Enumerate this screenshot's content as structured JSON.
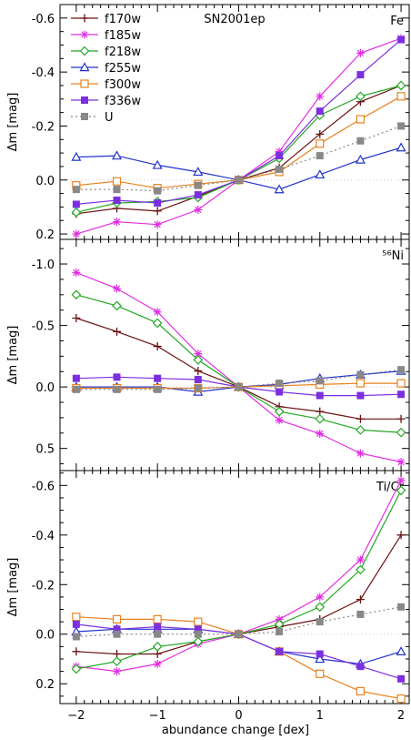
{
  "figure": {
    "xlabel": "abundance change [dex]",
    "ylabel": "Δm [mag]",
    "xticks": [
      -2,
      -1,
      0,
      1,
      2
    ],
    "legend_title": "SN2001ep"
  },
  "styles": [
    {
      "name": "f170w",
      "color": "#6b1010",
      "marker": "plus",
      "dash": ""
    },
    {
      "name": "f185w",
      "color": "#e22ee2",
      "marker": "asterisk",
      "dash": ""
    },
    {
      "name": "f218w",
      "color": "#22a822",
      "marker": "diamond",
      "dash": ""
    },
    {
      "name": "f255w",
      "color": "#2233cc",
      "marker": "triangle",
      "dash": ""
    },
    {
      "name": "f300w",
      "color": "#e8821e",
      "marker": "square-open",
      "dash": ""
    },
    {
      "name": "f336w",
      "color": "#7c2fe0",
      "marker": "square-filled",
      "dash": ""
    },
    {
      "name": "U",
      "color": "#888888",
      "marker": "square-filled",
      "dash": "2,3"
    }
  ],
  "chart_data": [
    {
      "type": "line",
      "panel_label": "Fe",
      "ylim": [
        0.22,
        -0.65
      ],
      "yticks": [
        0.2,
        0.0,
        -0.2,
        -0.4,
        -0.6
      ],
      "ytick_labels": [
        "0.2",
        "0.0",
        "-0.2",
        "-0.4",
        "-0.6"
      ],
      "x": [
        -2,
        -1.5,
        -1,
        -0.5,
        0,
        0.5,
        1,
        1.5,
        2
      ],
      "series": [
        {
          "name": "f170w",
          "values": [
            0.125,
            0.105,
            0.115,
            0.06,
            0.0,
            -0.045,
            -0.17,
            -0.29,
            -0.35
          ]
        },
        {
          "name": "f185w",
          "values": [
            0.2,
            0.155,
            0.165,
            0.11,
            0.0,
            -0.105,
            -0.31,
            -0.47,
            -0.525
          ]
        },
        {
          "name": "f218w",
          "values": [
            0.12,
            0.085,
            0.08,
            0.065,
            0.0,
            -0.08,
            -0.24,
            -0.31,
            -0.35
          ]
        },
        {
          "name": "f255w",
          "values": [
            -0.085,
            -0.09,
            -0.055,
            -0.03,
            0.0,
            0.035,
            -0.02,
            -0.075,
            -0.12
          ]
        },
        {
          "name": "f300w",
          "values": [
            0.02,
            0.005,
            0.03,
            0.015,
            0.0,
            -0.03,
            -0.135,
            -0.225,
            -0.31
          ]
        },
        {
          "name": "f336w",
          "values": [
            0.09,
            0.075,
            0.085,
            0.055,
            0.0,
            -0.09,
            -0.255,
            -0.39,
            -0.52
          ]
        },
        {
          "name": "U",
          "values": [
            0.035,
            0.035,
            0.04,
            0.02,
            0.0,
            -0.04,
            -0.09,
            -0.145,
            -0.2
          ]
        }
      ]
    },
    {
      "type": "line",
      "panel_label": "⁵⁶Ni",
      "ylim": [
        0.68,
        -1.2
      ],
      "yticks": [
        0.5,
        0.0,
        -0.5,
        -1.0
      ],
      "ytick_labels": [
        "0.5",
        "0.0",
        "-0.5",
        "-1.0"
      ],
      "x": [
        -2,
        -1.5,
        -1,
        -0.5,
        0,
        0.5,
        1,
        1.5,
        2
      ],
      "series": [
        {
          "name": "f170w",
          "values": [
            -0.56,
            -0.45,
            -0.33,
            -0.13,
            0.0,
            0.16,
            0.2,
            0.26,
            0.26
          ]
        },
        {
          "name": "f185w",
          "values": [
            -0.93,
            -0.8,
            -0.61,
            -0.27,
            0.0,
            0.27,
            0.38,
            0.54,
            0.61
          ]
        },
        {
          "name": "f218w",
          "values": [
            -0.75,
            -0.66,
            -0.52,
            -0.22,
            0.0,
            0.2,
            0.26,
            0.35,
            0.37
          ]
        },
        {
          "name": "f255w",
          "values": [
            0.0,
            0.0,
            0.0,
            0.04,
            0.0,
            -0.02,
            -0.07,
            -0.1,
            -0.13
          ]
        },
        {
          "name": "f300w",
          "values": [
            0.01,
            0.01,
            0.01,
            0.01,
            0.0,
            -0.01,
            -0.02,
            -0.03,
            -0.03
          ]
        },
        {
          "name": "f336w",
          "values": [
            -0.07,
            -0.08,
            -0.07,
            -0.06,
            0.0,
            0.04,
            0.07,
            0.07,
            0.06
          ]
        },
        {
          "name": "U",
          "values": [
            0.02,
            0.02,
            0.02,
            0.01,
            0.0,
            -0.03,
            -0.05,
            -0.1,
            -0.14
          ]
        }
      ]
    },
    {
      "type": "line",
      "panel_label": "Ti/Cr",
      "ylim": [
        0.28,
        -0.66
      ],
      "yticks": [
        0.2,
        0.0,
        -0.2,
        -0.4,
        -0.6
      ],
      "ytick_labels": [
        "0.2",
        "0.0",
        "-0.2",
        "-0.4",
        "-0.6"
      ],
      "x": [
        -2,
        -1.5,
        -1,
        -0.5,
        0,
        0.5,
        1,
        1.5,
        2
      ],
      "series": [
        {
          "name": "f170w",
          "values": [
            0.07,
            0.08,
            0.08,
            0.03,
            0.0,
            -0.03,
            -0.06,
            -0.14,
            -0.4
          ]
        },
        {
          "name": "f185w",
          "values": [
            0.13,
            0.15,
            0.12,
            0.04,
            0.0,
            -0.06,
            -0.15,
            -0.3,
            -0.62
          ]
        },
        {
          "name": "f218w",
          "values": [
            0.14,
            0.11,
            0.05,
            0.03,
            0.0,
            -0.04,
            -0.11,
            -0.26,
            -0.58
          ]
        },
        {
          "name": "f255w",
          "values": [
            -0.01,
            -0.02,
            -0.02,
            -0.02,
            0.0,
            0.07,
            0.1,
            0.12,
            0.07
          ]
        },
        {
          "name": "f300w",
          "values": [
            -0.07,
            -0.06,
            -0.06,
            -0.05,
            0.0,
            0.07,
            0.16,
            0.23,
            0.26
          ]
        },
        {
          "name": "f336w",
          "values": [
            -0.04,
            -0.02,
            -0.03,
            -0.02,
            0.0,
            0.07,
            0.08,
            0.13,
            0.18
          ]
        },
        {
          "name": "U",
          "values": [
            0.01,
            0.0,
            0.0,
            0.0,
            0.0,
            -0.01,
            -0.05,
            -0.08,
            -0.11
          ]
        }
      ]
    }
  ]
}
